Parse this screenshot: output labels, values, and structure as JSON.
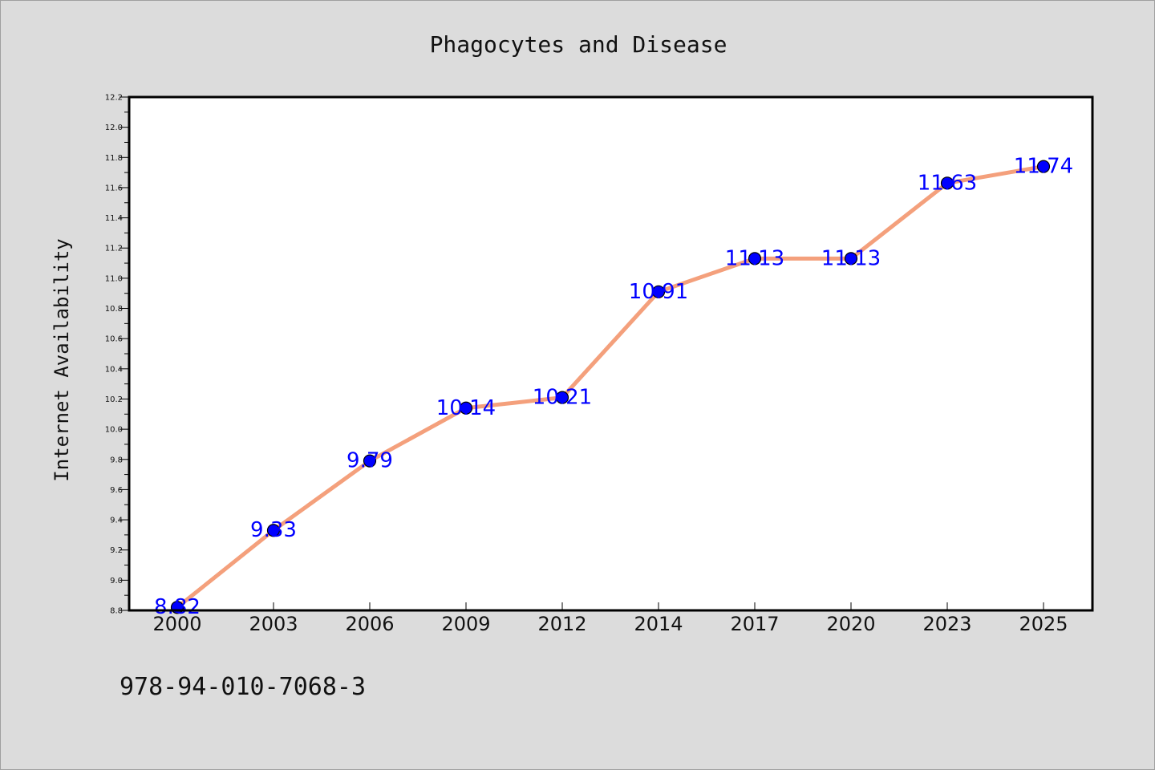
{
  "chart_data": {
    "type": "line",
    "title": "Phagocytes and Disease",
    "xlabel": "",
    "ylabel": "Internet Availability",
    "categories": [
      "2000",
      "2003",
      "2006",
      "2009",
      "2012",
      "2014",
      "2017",
      "2020",
      "2023",
      "2025"
    ],
    "values": [
      8.82,
      9.33,
      9.79,
      10.14,
      10.21,
      10.91,
      11.13,
      11.13,
      11.63,
      11.74
    ],
    "data_labels": [
      "8.82",
      "9.33",
      "9.79",
      "10.14",
      "10.21",
      "10.91",
      "11.13",
      "11.13",
      "11.63",
      "11.74"
    ],
    "ylim": [
      8.8,
      12.2
    ],
    "yticks": [
      "8.8",
      "9.0",
      "9.2",
      "9.4",
      "9.6",
      "9.8",
      "10.0",
      "10.2",
      "10.4",
      "10.6",
      "10.8",
      "11.0",
      "11.2",
      "11.4",
      "11.6",
      "11.8",
      "12.0",
      "12.2"
    ],
    "grid": false,
    "legend": "none",
    "line_color": "#f4a07c",
    "marker_color": "#0000ff",
    "label_color": "#0000ff"
  },
  "footer": {
    "isbn": "978-94-010-7068-3"
  }
}
